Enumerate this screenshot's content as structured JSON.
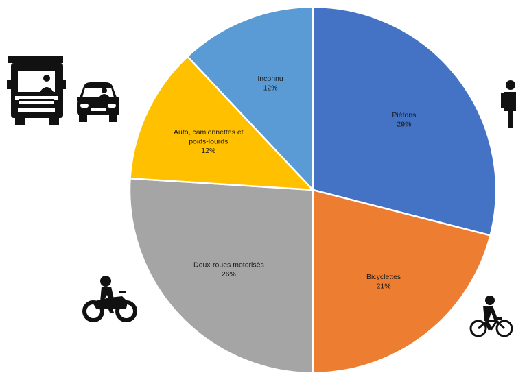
{
  "chart_data": {
    "type": "pie",
    "start_angle_deg": 0,
    "direction": "clockwise",
    "slices": [
      {
        "label_lines": [
          "Piétons"
        ],
        "percent_text": "29%",
        "value": 29,
        "color": "#4472C4"
      },
      {
        "label_lines": [
          "Bicyclettes"
        ],
        "percent_text": "21%",
        "value": 21,
        "color": "#ED7D31"
      },
      {
        "label_lines": [
          "Deux-roues motorisés"
        ],
        "percent_text": "26%",
        "value": 26,
        "color": "#A5A5A5"
      },
      {
        "label_lines": [
          "Auto, camionnettes et",
          "poids-lourds"
        ],
        "percent_text": "12%",
        "value": 12,
        "color": "#FFC000"
      },
      {
        "label_lines": [
          "Inconnu"
        ],
        "percent_text": "12%",
        "value": 12,
        "color": "#5B9BD5"
      }
    ]
  },
  "icons": [
    "truck-icon",
    "car-icon",
    "pedestrian-icon",
    "motorcycle-icon",
    "cyclist-icon"
  ]
}
